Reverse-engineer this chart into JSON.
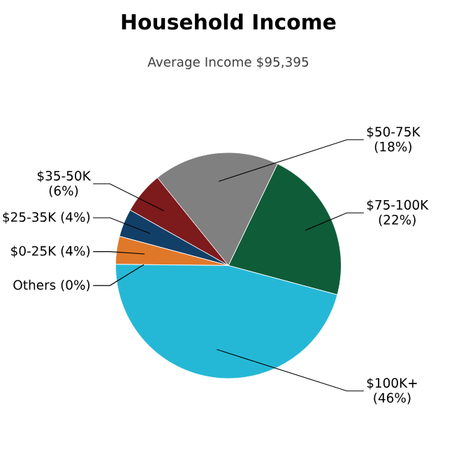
{
  "chart_data": {
    "type": "pie",
    "title": "Household Income",
    "subtitle": "Average Income  $95,395",
    "categories": [
      "$75-100K",
      "$50-75K",
      "$35-50K",
      "$25-35K",
      "$0-25K",
      "Others",
      "$100K+"
    ],
    "values": [
      22,
      18,
      6,
      4,
      4,
      0,
      46
    ],
    "colors": [
      "#0f5c38",
      "#808080",
      "#7d1a1c",
      "#123f68",
      "#e0782a",
      "#8db33a",
      "#25b8d6"
    ],
    "value_labels": [
      "(22%)",
      "(18%)",
      "(6%)",
      "(4%)",
      "(4%)",
      "(0%)",
      "(46%)"
    ]
  }
}
